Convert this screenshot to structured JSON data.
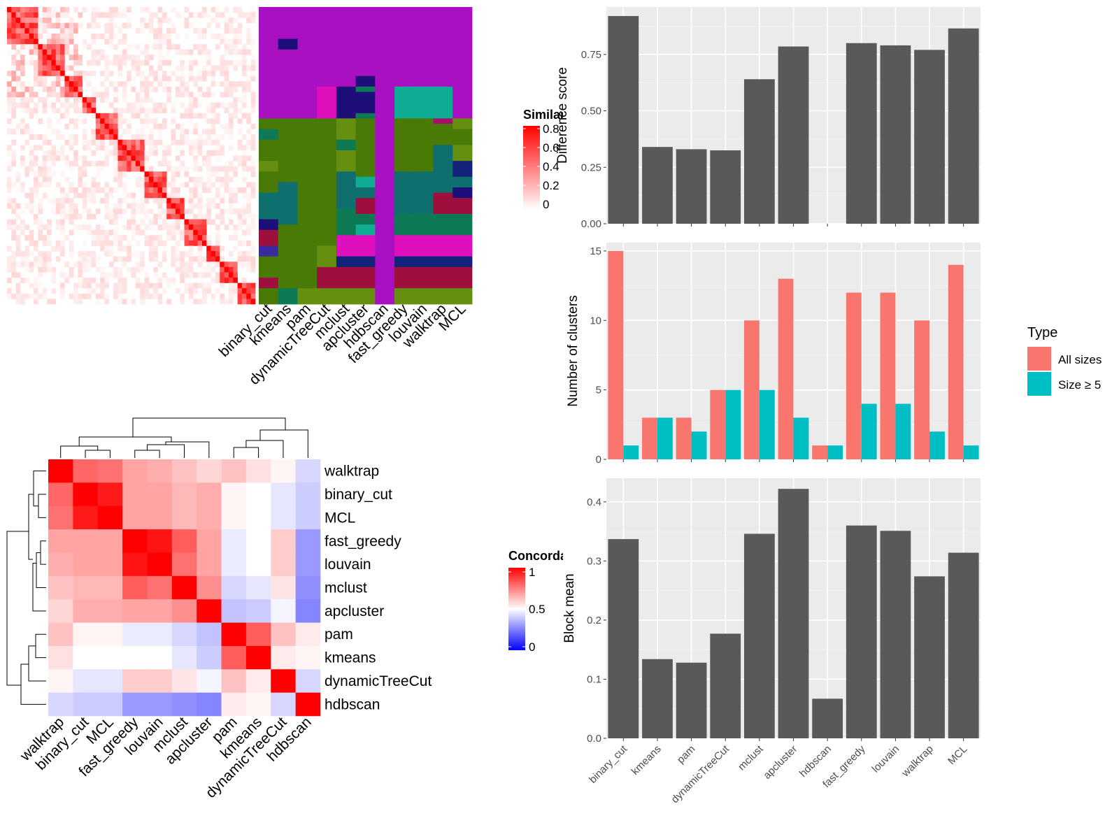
{
  "similarity_legend": {
    "title": "Similarity",
    "ticks": [
      "0.8",
      "0.6",
      "0.4",
      "0.2",
      "0"
    ]
  },
  "cluster_methods": [
    "binary_cut",
    "kmeans",
    "pam",
    "dynamicTreeCut",
    "mclust",
    "apcluster",
    "hdbscan",
    "fast_greedy",
    "louvain",
    "walktrap",
    "MCL"
  ],
  "concordance_legend": {
    "title": "Concordance",
    "ticks": [
      "1",
      "0.5",
      "0"
    ]
  },
  "type_legend": {
    "title": "Type",
    "items": [
      "All sizes",
      "Size ≥ 5"
    ]
  },
  "colors": {
    "bar_dark": "#595959",
    "all_sizes": "#F8766D",
    "size_ge5": "#00BFC4",
    "panel_bg": "#EBEBEB",
    "heat_red": "#FF0000",
    "heat_white": "#FFFFFF",
    "heat_blue": "#0000FF",
    "cluster_palette": [
      "#A910C1",
      "#4A7A06",
      "#0E7A55",
      "#1E0E7A",
      "#0F6E6E",
      "#9E0F3E",
      "#0FAD94",
      "#DF0FBE",
      "#7A4E06",
      "#13237A",
      "#2B6E06",
      "#65900F",
      "#3A2A9E",
      "#0F9E9E",
      "#A9106A"
    ]
  },
  "chart_data": [
    {
      "type": "heatmap",
      "name": "similarity matrix",
      "n": 56,
      "diagonal_blocks": [
        7,
        6,
        4,
        3,
        5,
        6,
        5,
        4,
        5,
        3,
        4,
        4
      ],
      "scale": [
        0,
        0.85
      ]
    },
    {
      "type": "heatmap",
      "name": "cluster assignments",
      "columns": [
        "binary_cut",
        "kmeans",
        "pam",
        "dynamicTreeCut",
        "mclust",
        "apcluster",
        "hdbscan",
        "fast_greedy",
        "louvain",
        "walktrap",
        "MCL"
      ],
      "n_rows": 56
    },
    {
      "type": "heatmap",
      "name": "concordance",
      "rows": [
        "walktrap",
        "binary_cut",
        "MCL",
        "fast_greedy",
        "louvain",
        "mclust",
        "apcluster",
        "pam",
        "kmeans",
        "dynamicTreeCut",
        "hdbscan"
      ],
      "cols": [
        "walktrap",
        "binary_cut",
        "MCL",
        "fast_greedy",
        "louvain",
        "mclust",
        "apcluster",
        "pam",
        "kmeans",
        "dynamicTreeCut",
        "hdbscan"
      ],
      "values": [
        [
          1.0,
          0.8,
          0.78,
          0.68,
          0.66,
          0.62,
          0.58,
          0.62,
          0.56,
          0.52,
          0.42
        ],
        [
          0.8,
          1.0,
          0.95,
          0.68,
          0.68,
          0.64,
          0.66,
          0.52,
          0.5,
          0.45,
          0.4
        ],
        [
          0.78,
          0.95,
          1.0,
          0.68,
          0.68,
          0.64,
          0.66,
          0.52,
          0.5,
          0.45,
          0.4
        ],
        [
          0.68,
          0.68,
          0.68,
          1.0,
          0.96,
          0.82,
          0.68,
          0.46,
          0.5,
          0.6,
          0.3
        ],
        [
          0.66,
          0.68,
          0.68,
          0.96,
          1.0,
          0.78,
          0.68,
          0.46,
          0.5,
          0.6,
          0.3
        ],
        [
          0.62,
          0.64,
          0.64,
          0.82,
          0.78,
          1.0,
          0.72,
          0.42,
          0.45,
          0.55,
          0.28
        ],
        [
          0.58,
          0.66,
          0.66,
          0.68,
          0.68,
          0.72,
          1.0,
          0.38,
          0.4,
          0.48,
          0.26
        ],
        [
          0.62,
          0.52,
          0.52,
          0.46,
          0.46,
          0.42,
          0.38,
          1.0,
          0.82,
          0.62,
          0.54
        ],
        [
          0.56,
          0.5,
          0.5,
          0.5,
          0.5,
          0.45,
          0.4,
          0.82,
          1.0,
          0.54,
          0.52
        ],
        [
          0.52,
          0.45,
          0.45,
          0.6,
          0.6,
          0.55,
          0.48,
          0.62,
          0.54,
          1.0,
          0.42
        ],
        [
          0.42,
          0.4,
          0.4,
          0.3,
          0.3,
          0.28,
          0.26,
          0.54,
          0.52,
          0.42,
          1.0
        ]
      ],
      "scale": [
        0,
        1
      ]
    },
    {
      "type": "bar",
      "name": "difference score",
      "ylabel": "Difference score",
      "categories": [
        "binary_cut",
        "kmeans",
        "pam",
        "dynamicTreeCut",
        "mclust",
        "apcluster",
        "hdbscan",
        "fast_greedy",
        "louvain",
        "walktrap",
        "MCL"
      ],
      "values": [
        0.92,
        0.34,
        0.33,
        0.325,
        0.64,
        0.785,
        null,
        0.8,
        0.79,
        0.77,
        0.865
      ],
      "ylim": [
        0,
        0.96
      ],
      "yticks": [
        "0.00",
        "0.25",
        "0.50",
        "0.75"
      ],
      "grid": true
    },
    {
      "type": "bar",
      "name": "number of clusters",
      "ylabel": "Number of clusters",
      "categories": [
        "binary_cut",
        "kmeans",
        "pam",
        "dynamicTreeCut",
        "mclust",
        "apcluster",
        "hdbscan",
        "fast_greedy",
        "louvain",
        "walktrap",
        "MCL"
      ],
      "series": [
        {
          "name": "All sizes",
          "values": [
            15,
            3,
            3,
            5,
            10,
            13,
            1,
            12,
            12,
            10,
            14
          ]
        },
        {
          "name": "Size ≥ 5",
          "values": [
            1,
            3,
            2,
            5,
            5,
            3,
            1,
            4,
            4,
            2,
            1
          ]
        }
      ],
      "ylim": [
        0,
        15.6
      ],
      "yticks": [
        "0",
        "5",
        "10",
        "15"
      ],
      "grid": true,
      "legend": "right"
    },
    {
      "type": "bar",
      "name": "block mean",
      "ylabel": "Block mean",
      "categories": [
        "binary_cut",
        "kmeans",
        "pam",
        "dynamicTreeCut",
        "mclust",
        "apcluster",
        "hdbscan",
        "fast_greedy",
        "louvain",
        "walktrap",
        "MCL"
      ],
      "values": [
        0.337,
        0.134,
        0.128,
        0.177,
        0.346,
        0.422,
        0.067,
        0.36,
        0.351,
        0.274,
        0.314
      ],
      "ylim": [
        0,
        0.44
      ],
      "yticks": [
        "0.0",
        "0.1",
        "0.2",
        "0.3",
        "0.4"
      ],
      "grid": true
    }
  ]
}
